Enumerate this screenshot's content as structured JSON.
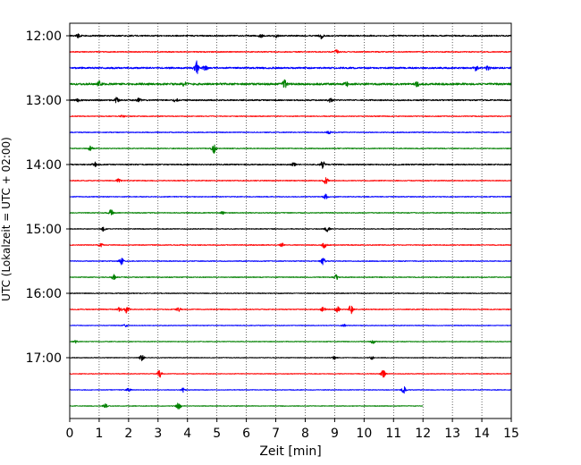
{
  "chart_data": {
    "type": "line",
    "xlabel": "Zeit  [min]",
    "ylabel": "UTC (Lokalzeit = UTC + 02:00)",
    "xlim": [
      0,
      15
    ],
    "x_ticks": [
      "0",
      "1",
      "2",
      "3",
      "4",
      "5",
      "6",
      "7",
      "8",
      "9",
      "10",
      "11",
      "12",
      "13",
      "14",
      "15"
    ],
    "y_tick_labels": [
      "12:00",
      "13:00",
      "14:00",
      "15:00",
      "16:00",
      "17:00"
    ],
    "grid": "vertical-dotted",
    "row_colors": [
      "#000000",
      "#ff0000",
      "#0000ff",
      "#008000"
    ],
    "series": [
      {
        "start": "12:00",
        "end_min": 15,
        "color": "#000000",
        "amplitude": 0.08,
        "spikes": [
          [
            0.3,
            0.1
          ],
          [
            6.5,
            0.1
          ],
          [
            7.0,
            0.09
          ],
          [
            8.55,
            0.16
          ]
        ]
      },
      {
        "start": "12:15",
        "end_min": 15,
        "color": "#ff0000",
        "amplitude": 0.06,
        "spikes": [
          [
            9.05,
            0.12
          ]
        ]
      },
      {
        "start": "12:30",
        "end_min": 15,
        "color": "#0000ff",
        "amplitude": 0.1,
        "spikes": [
          [
            4.3,
            0.42
          ],
          [
            4.6,
            0.15
          ],
          [
            13.8,
            0.14
          ],
          [
            14.2,
            0.11
          ]
        ]
      },
      {
        "start": "12:45",
        "end_min": 15,
        "color": "#008000",
        "amplitude": 0.12,
        "spikes": [
          [
            1.0,
            0.14
          ],
          [
            3.9,
            0.1
          ],
          [
            7.3,
            0.22
          ],
          [
            9.4,
            0.12
          ],
          [
            11.8,
            0.14
          ]
        ]
      },
      {
        "start": "13:00",
        "end_min": 15,
        "color": "#000000",
        "amplitude": 0.08,
        "spikes": [
          [
            0.3,
            0.1
          ],
          [
            1.6,
            0.15
          ],
          [
            2.35,
            0.13
          ],
          [
            3.6,
            0.1
          ],
          [
            8.85,
            0.11
          ]
        ]
      },
      {
        "start": "13:15",
        "end_min": 15,
        "color": "#ff0000",
        "amplitude": 0.05,
        "spikes": [
          [
            1.8,
            0.08
          ]
        ]
      },
      {
        "start": "13:30",
        "end_min": 15,
        "color": "#0000ff",
        "amplitude": 0.05,
        "spikes": [
          [
            8.8,
            0.08
          ]
        ]
      },
      {
        "start": "13:45",
        "end_min": 15,
        "color": "#008000",
        "amplitude": 0.05,
        "spikes": [
          [
            0.7,
            0.14
          ],
          [
            4.9,
            0.3
          ]
        ]
      },
      {
        "start": "14:00",
        "end_min": 15,
        "color": "#000000",
        "amplitude": 0.07,
        "spikes": [
          [
            0.85,
            0.15
          ],
          [
            7.6,
            0.1
          ],
          [
            8.6,
            0.24
          ]
        ]
      },
      {
        "start": "14:15",
        "end_min": 15,
        "color": "#ff0000",
        "amplitude": 0.05,
        "spikes": [
          [
            1.65,
            0.1
          ],
          [
            8.7,
            0.2
          ]
        ]
      },
      {
        "start": "14:30",
        "end_min": 15,
        "color": "#0000ff",
        "amplitude": 0.05,
        "spikes": [
          [
            8.7,
            0.18
          ]
        ]
      },
      {
        "start": "14:45",
        "end_min": 15,
        "color": "#008000",
        "amplitude": 0.05,
        "spikes": [
          [
            1.4,
            0.18
          ],
          [
            5.2,
            0.08
          ]
        ]
      },
      {
        "start": "15:00",
        "end_min": 15,
        "color": "#000000",
        "amplitude": 0.05,
        "spikes": [
          [
            1.15,
            0.12
          ],
          [
            8.75,
            0.18
          ]
        ]
      },
      {
        "start": "15:15",
        "end_min": 15,
        "color": "#ff0000",
        "amplitude": 0.05,
        "spikes": [
          [
            1.05,
            0.1
          ],
          [
            7.2,
            0.12
          ],
          [
            8.65,
            0.18
          ]
        ]
      },
      {
        "start": "15:30",
        "end_min": 15,
        "color": "#0000ff",
        "amplitude": 0.05,
        "spikes": [
          [
            1.75,
            0.22
          ],
          [
            8.6,
            0.2
          ]
        ]
      },
      {
        "start": "15:45",
        "end_min": 15,
        "color": "#008000",
        "amplitude": 0.05,
        "spikes": [
          [
            1.5,
            0.18
          ],
          [
            9.05,
            0.18
          ]
        ]
      },
      {
        "start": "16:00",
        "end_min": 15,
        "color": "#000000",
        "amplitude": 0.05,
        "spikes": []
      },
      {
        "start": "16:15",
        "end_min": 15,
        "color": "#ff0000",
        "amplitude": 0.05,
        "spikes": [
          [
            1.7,
            0.16
          ],
          [
            1.95,
            0.24
          ],
          [
            3.7,
            0.12
          ],
          [
            8.6,
            0.14
          ],
          [
            9.1,
            0.16
          ],
          [
            9.55,
            0.28
          ]
        ]
      },
      {
        "start": "16:30",
        "end_min": 15,
        "color": "#0000ff",
        "amplitude": 0.04,
        "spikes": [
          [
            1.9,
            0.1
          ],
          [
            9.3,
            0.08
          ]
        ]
      },
      {
        "start": "16:45",
        "end_min": 15,
        "color": "#008000",
        "amplitude": 0.04,
        "spikes": [
          [
            0.2,
            0.08
          ],
          [
            10.3,
            0.12
          ]
        ]
      },
      {
        "start": "17:00",
        "end_min": 15,
        "color": "#000000",
        "amplitude": 0.04,
        "spikes": [
          [
            2.45,
            0.2
          ],
          [
            9.0,
            0.1
          ],
          [
            10.25,
            0.12
          ]
        ]
      },
      {
        "start": "17:15",
        "end_min": 15,
        "color": "#ff0000",
        "amplitude": 0.04,
        "spikes": [
          [
            3.05,
            0.24
          ],
          [
            10.65,
            0.22
          ]
        ]
      },
      {
        "start": "17:30",
        "end_min": 15,
        "color": "#0000ff",
        "amplitude": 0.04,
        "spikes": [
          [
            2.0,
            0.1
          ],
          [
            3.85,
            0.16
          ],
          [
            11.35,
            0.2
          ]
        ]
      },
      {
        "start": "17:45",
        "end_min": 12,
        "color": "#008000",
        "amplitude": 0.04,
        "spikes": [
          [
            1.2,
            0.12
          ],
          [
            3.7,
            0.24
          ]
        ]
      }
    ]
  }
}
